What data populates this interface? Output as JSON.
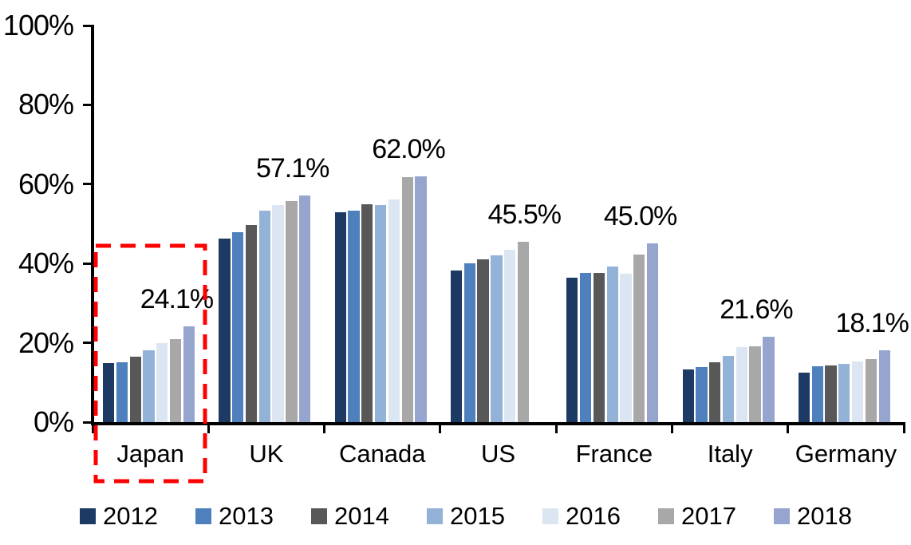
{
  "chart_data": {
    "type": "bar",
    "title": "",
    "xlabel": "",
    "ylabel": "",
    "categories": [
      "Japan",
      "UK",
      "Canada",
      "US",
      "France",
      "Italy",
      "Germany"
    ],
    "series": [
      {
        "name": "2012",
        "color": "#1C3A63",
        "values": [
          14.8,
          46.3,
          53.0,
          38.2,
          36.5,
          13.2,
          12.5
        ]
      },
      {
        "name": "2013",
        "color": "#4E80BD",
        "values": [
          15.0,
          47.8,
          53.4,
          40.0,
          37.7,
          13.8,
          14.0
        ]
      },
      {
        "name": "2014",
        "color": "#585858",
        "values": [
          16.6,
          49.8,
          54.9,
          41.1,
          37.7,
          15.1,
          14.3
        ]
      },
      {
        "name": "2015",
        "color": "#93B2D7",
        "values": [
          18.1,
          53.3,
          54.7,
          42.1,
          39.3,
          16.7,
          14.6
        ]
      },
      {
        "name": "2016",
        "color": "#DCE6F2",
        "values": [
          19.9,
          54.8,
          56.2,
          43.5,
          37.4,
          18.9,
          15.3
        ]
      },
      {
        "name": "2017",
        "color": "#A8A8A8",
        "values": [
          21.0,
          55.8,
          61.7,
          45.5,
          42.3,
          19.1,
          15.9
        ]
      },
      {
        "name": "2018",
        "color": "#95A5CE",
        "values": [
          24.1,
          57.1,
          62.0,
          null,
          45.0,
          21.6,
          18.1
        ]
      }
    ],
    "data_labels": [
      "24.1%",
      "57.1%",
      "62.0%",
      "45.5%",
      "45.0%",
      "21.6%",
      "18.1%"
    ],
    "y_axis": {
      "min": 0,
      "max": 100,
      "tick_values": [
        0,
        20,
        40,
        60,
        80,
        100
      ],
      "tick_labels": [
        "0%",
        "20%",
        "40%",
        "60%",
        "80%",
        "100%"
      ]
    },
    "grid": false,
    "legend": {
      "position": "bottom",
      "entries": [
        "2012",
        "2013",
        "2014",
        "2015",
        "2016",
        "2017",
        "2018"
      ]
    },
    "annotations": {
      "highlight_box": {
        "category": "Japan",
        "color": "#FF0000",
        "style": "dashed"
      }
    }
  }
}
